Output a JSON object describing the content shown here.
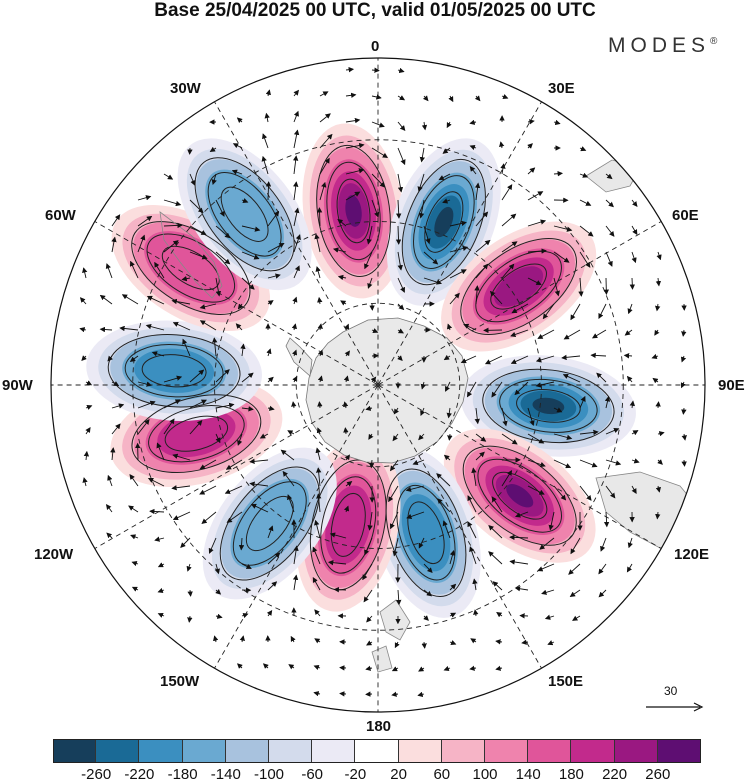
{
  "title": "Base 25/04/2025 00 UTC, valid 01/05/2025 00 UTC",
  "brand": "MODES",
  "brand_mark": "®",
  "longitude_labels": {
    "n0": "0",
    "n30e": "30E",
    "n60e": "60E",
    "n90e": "90E",
    "n120e": "120E",
    "n150e": "150E",
    "n180": "180",
    "n150w": "150W",
    "n120w": "120W",
    "n90w": "90W",
    "n60w": "60W",
    "n30w": "30W"
  },
  "reference_vector_label": "30",
  "colorbar": {
    "colors": [
      "#163e5b",
      "#1a6a96",
      "#3b8fc0",
      "#6aa9d1",
      "#a8c2de",
      "#d3dbec",
      "#ebeaf5",
      "#ffffff",
      "#fbdede",
      "#f6b4c6",
      "#ef83ad",
      "#e0559a",
      "#c22a8c",
      "#9a1881",
      "#5e0e72"
    ],
    "ticks": [
      "-260",
      "-220",
      "-180",
      "-140",
      "-100",
      "-60",
      "-20",
      "20",
      "60",
      "100",
      "140",
      "180",
      "220",
      "260"
    ]
  },
  "anomaly_centers": [
    {
      "name": "positive 15W",
      "sign": "+",
      "lon": -8,
      "lat": -47,
      "level": 5
    },
    {
      "name": "negative 20E",
      "sign": "-",
      "lon": 22,
      "lat": -47,
      "level": 5
    },
    {
      "name": "positive 55E",
      "sign": "+",
      "lon": 55,
      "lat": -48,
      "level": 4
    },
    {
      "name": "negative 95E",
      "sign": "-",
      "lon": 97,
      "lat": -48,
      "level": 5
    },
    {
      "name": "positive 125E",
      "sign": "+",
      "lon": 128,
      "lat": -46,
      "level": 5
    },
    {
      "name": "negative 160E",
      "sign": "-",
      "lon": 162,
      "lat": -52,
      "level": 3
    },
    {
      "name": "positive 170W",
      "sign": "+",
      "lon": -168,
      "lat": -55,
      "level": 3
    },
    {
      "name": "negative 140W",
      "sign": "-",
      "lon": -142,
      "lat": -47,
      "level": 2
    },
    {
      "name": "positive 105W",
      "sign": "+",
      "lon": -105,
      "lat": -44,
      "level": 3
    },
    {
      "name": "negative 85W",
      "sign": "-",
      "lon": -86,
      "lat": -40,
      "level": 3
    },
    {
      "name": "positive 60W",
      "sign": "+",
      "lon": -58,
      "lat": -36,
      "level": 2
    },
    {
      "name": "negative 40W",
      "sign": "-",
      "lon": -38,
      "lat": -37,
      "level": 2
    }
  ]
}
